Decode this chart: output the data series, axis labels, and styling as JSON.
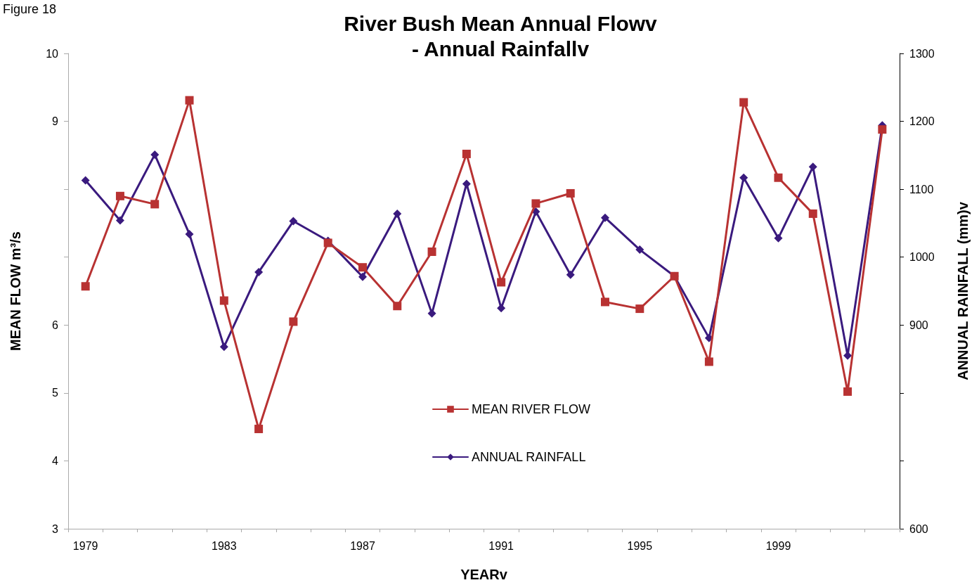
{
  "chart_data": {
    "type": "line",
    "title": "River Bush Mean Annual Flowv\n- Annual Rainfallv",
    "xlabel": "YEARv",
    "ylabel": "MEAN FLOW m³/s",
    "y2label": "ANNUAL RAINFALL (mm)v",
    "annotations": [
      "Figure 18"
    ],
    "categories": [
      "1979",
      null,
      null,
      null,
      "1983",
      null,
      null,
      null,
      "1987",
      null,
      null,
      null,
      "1991",
      null,
      null,
      null,
      "1995",
      null,
      null,
      null,
      "1999",
      null,
      null,
      null
    ],
    "series": [
      {
        "name": "MEAN RIVER FLOW",
        "color": "#b83232",
        "marker": "square",
        "values": [
          6.57,
          7.9,
          7.78,
          9.31,
          6.36,
          4.47,
          6.05,
          7.21,
          6.85,
          6.28,
          7.08,
          8.52,
          6.63,
          7.79,
          7.94,
          6.34,
          6.24,
          6.72,
          5.46,
          9.28,
          8.17,
          7.64,
          5.02,
          8.88
        ]
      },
      {
        "name": "ANNUAL RAINFALL",
        "color": "#3a1a7e",
        "marker": "diamond",
        "axis": "y2",
        "values": [
          1113,
          1054,
          1151,
          1034,
          868,
          978,
          1053,
          1024,
          971,
          1064,
          917,
          1108,
          925,
          1067,
          974,
          1058,
          1011,
          972,
          881,
          1117,
          1028,
          1133,
          855,
          1194
        ]
      }
    ],
    "ylim": [
      3,
      10
    ],
    "yticks": [
      3,
      4,
      5,
      6,
      {
        "value": 7,
        "label": null
      },
      {
        "value": 8,
        "label": null
      },
      9,
      10
    ],
    "y2lim": [
      600,
      1300
    ],
    "y2ticks": [
      600,
      {
        "value": 700,
        "label": null
      },
      {
        "value": 800,
        "label": null
      },
      900,
      1000,
      1100,
      1200,
      1300
    ],
    "grid": false,
    "legend": "bottom",
    "line_style": "solid"
  }
}
